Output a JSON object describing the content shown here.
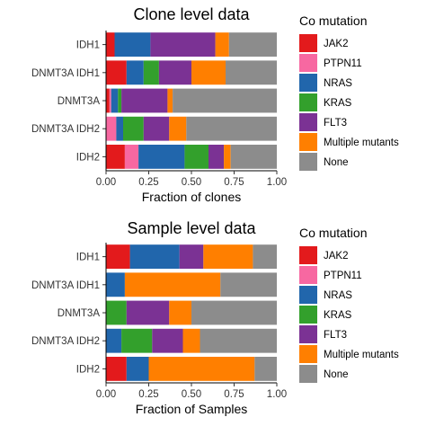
{
  "chart_data": [
    {
      "type": "bar",
      "orientation": "horizontal",
      "stacked": true,
      "title": "Clone level data",
      "xlabel": "Fraction of clones",
      "ylabel": "",
      "xlim": [
        0,
        1
      ],
      "x_ticks": [
        "0.00",
        "0.25",
        "0.50",
        "0.75",
        "1.00"
      ],
      "categories": [
        "IDH1",
        "DNMT3A IDH1",
        "DNMT3A",
        "DNMT3A IDH2",
        "IDH2"
      ],
      "legend_title": "Co mutation",
      "legend_position": "right",
      "series": [
        {
          "name": "JAK2",
          "color": "#E31A1C",
          "values": [
            0.05,
            0.12,
            0.02,
            0.0,
            0.11
          ]
        },
        {
          "name": "PTPN11",
          "color": "#F768A1",
          "values": [
            0.0,
            0.0,
            0.01,
            0.06,
            0.08
          ]
        },
        {
          "name": "NRAS",
          "color": "#2166AC",
          "values": [
            0.21,
            0.1,
            0.04,
            0.04,
            0.27
          ]
        },
        {
          "name": "KRAS",
          "color": "#33A02C",
          "values": [
            0.0,
            0.09,
            0.02,
            0.12,
            0.14
          ]
        },
        {
          "name": "FLT3",
          "color": "#7B3294",
          "values": [
            0.38,
            0.19,
            0.27,
            0.15,
            0.09
          ]
        },
        {
          "name": "Multiple mutants",
          "color": "#FF7F00",
          "values": [
            0.08,
            0.2,
            0.03,
            0.1,
            0.04
          ]
        },
        {
          "name": "None",
          "color": "#8C8C8C",
          "values": [
            0.28,
            0.3,
            0.61,
            0.53,
            0.27
          ]
        }
      ]
    },
    {
      "type": "bar",
      "orientation": "horizontal",
      "stacked": true,
      "title": "Sample level data",
      "xlabel": "Fraction of Samples",
      "ylabel": "",
      "xlim": [
        0,
        1
      ],
      "x_ticks": [
        "0.00",
        "0.25",
        "0.50",
        "0.75",
        "1.00"
      ],
      "categories": [
        "IDH1",
        "DNMT3A IDH1",
        "DNMT3A",
        "DNMT3A IDH2",
        "IDH2"
      ],
      "legend_title": "Co mutation",
      "legend_position": "right",
      "series": [
        {
          "name": "JAK2",
          "color": "#E31A1C",
          "values": [
            0.14,
            0.0,
            0.0,
            0.0,
            0.12
          ]
        },
        {
          "name": "PTPN11",
          "color": "#F768A1",
          "values": [
            0.0,
            0.0,
            0.0,
            0.0,
            0.0
          ]
        },
        {
          "name": "NRAS",
          "color": "#2166AC",
          "values": [
            0.29,
            0.11,
            0.0,
            0.09,
            0.13
          ]
        },
        {
          "name": "KRAS",
          "color": "#33A02C",
          "values": [
            0.0,
            0.0,
            0.12,
            0.18,
            0.0
          ]
        },
        {
          "name": "FLT3",
          "color": "#7B3294",
          "values": [
            0.14,
            0.0,
            0.25,
            0.18,
            0.0
          ]
        },
        {
          "name": "Multiple mutants",
          "color": "#FF7F00",
          "values": [
            0.29,
            0.56,
            0.13,
            0.1,
            0.62
          ]
        },
        {
          "name": "None",
          "color": "#8C8C8C",
          "values": [
            0.14,
            0.33,
            0.5,
            0.45,
            0.13
          ]
        }
      ]
    }
  ]
}
